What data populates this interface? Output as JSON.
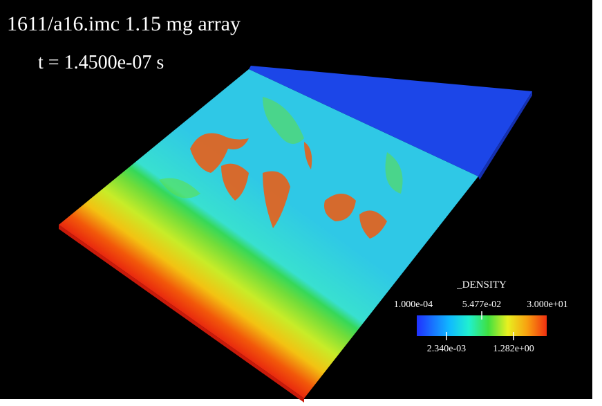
{
  "title": "1611/a16.imc 1.15 mg array",
  "time_label": "t = 1.4500e-07 s",
  "colorbar": {
    "title": "_DENSITY",
    "labels_top": [
      "1.000e-04",
      "5.477e-02",
      "3.000e+01"
    ],
    "labels_bottom": [
      "2.340e-03",
      "1.282e+00"
    ]
  }
}
